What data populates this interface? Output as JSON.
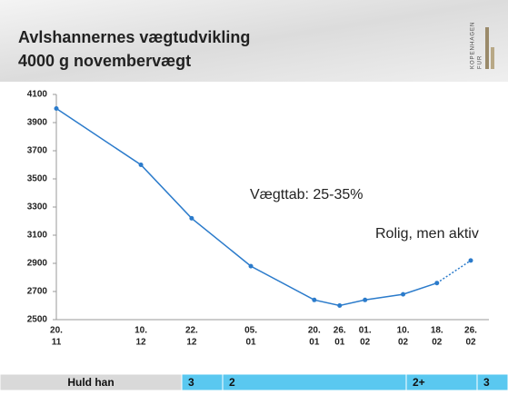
{
  "header": {
    "title_lines": [
      "Avlshannernes vægtudvikling",
      "4000 g novembervægt"
    ],
    "logo": [
      "KOPENHAGEN",
      "FUR"
    ]
  },
  "chart_data": {
    "type": "line",
    "categories": [
      [
        "20.",
        "11"
      ],
      [
        "10.",
        "12"
      ],
      [
        "22.",
        "12"
      ],
      [
        "05.",
        "01"
      ],
      [
        "20.",
        "01"
      ],
      [
        "26.",
        "01"
      ],
      [
        "01.",
        "02"
      ],
      [
        "10.",
        "02"
      ],
      [
        "18.",
        "02"
      ],
      [
        "26.",
        "02"
      ]
    ],
    "values": [
      4000,
      3600,
      3220,
      2880,
      2640,
      2600,
      2640,
      2680,
      2760,
      2920
    ],
    "color": "#2b7bcb",
    "dashed_last_segment": true,
    "ylim": [
      2500,
      4100
    ],
    "yticks": [
      2500,
      2700,
      2900,
      3100,
      3300,
      3500,
      3700,
      3900,
      4100
    ],
    "annotations": [
      "Vægttab: 25-35%",
      "Rolig, men aktiv"
    ]
  },
  "table": {
    "rows": [
      [
        "Huld han",
        "3",
        "2",
        "2+",
        "3"
      ]
    ]
  }
}
